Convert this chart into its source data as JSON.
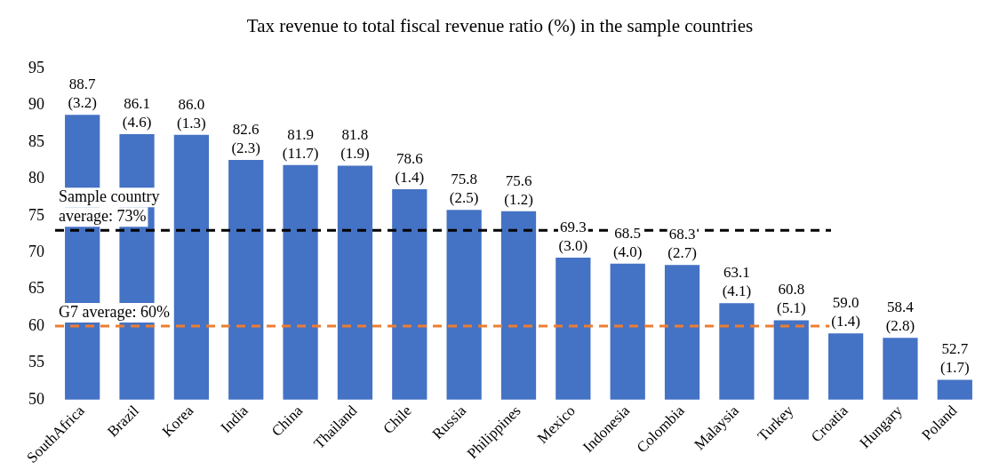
{
  "chart_data": {
    "type": "bar",
    "title": "Tax revenue to total fiscal revenue ratio (%) in the sample countries",
    "categories": [
      "SouthAfrica",
      "Brazil",
      "Korea",
      "India",
      "China",
      "Thailand",
      "Chile",
      "Russia",
      "Philippines",
      "Mexico",
      "Indonesia",
      "Colombia",
      "Malaysia",
      "Turkey",
      "Croatia",
      "Hungary",
      "Poland"
    ],
    "values": [
      88.7,
      86.1,
      86.0,
      82.6,
      81.9,
      81.8,
      78.6,
      75.8,
      75.6,
      69.3,
      68.5,
      68.3,
      63.1,
      60.8,
      59.0,
      58.4,
      52.7
    ],
    "value_labels": [
      "88.7\n(3.2)",
      "86.1\n(4.6)",
      "86.0\n(1.3)",
      "82.6\n(2.3)",
      "81.9\n(11.7)",
      "81.8\n(1.9)",
      "78.6\n(1.4)",
      "75.8\n(2.5)",
      "75.6\n(1.2)",
      "69.3\n(3.0)",
      "68.5\n(4.0)",
      "68.3\n(2.7)",
      "63.1\n(4.1)",
      "60.8\n(5.1)",
      "59.0\n(1.4)",
      "58.4\n(2.8)",
      "52.7\n(1.7)"
    ],
    "color": "#4472c4",
    "ylim": [
      50,
      95
    ],
    "yticks": [
      50,
      55,
      60,
      65,
      70,
      75,
      80,
      85,
      90,
      95
    ],
    "ref_lines": [
      {
        "axis": "y",
        "value": 73,
        "label": "Sample country average: 73%",
        "color": "#000000",
        "line_style": "dashed"
      },
      {
        "axis": "y",
        "value": 60,
        "label": "G7 average: 60%",
        "color": "#ed7d31",
        "line_style": "dashed"
      }
    ]
  }
}
